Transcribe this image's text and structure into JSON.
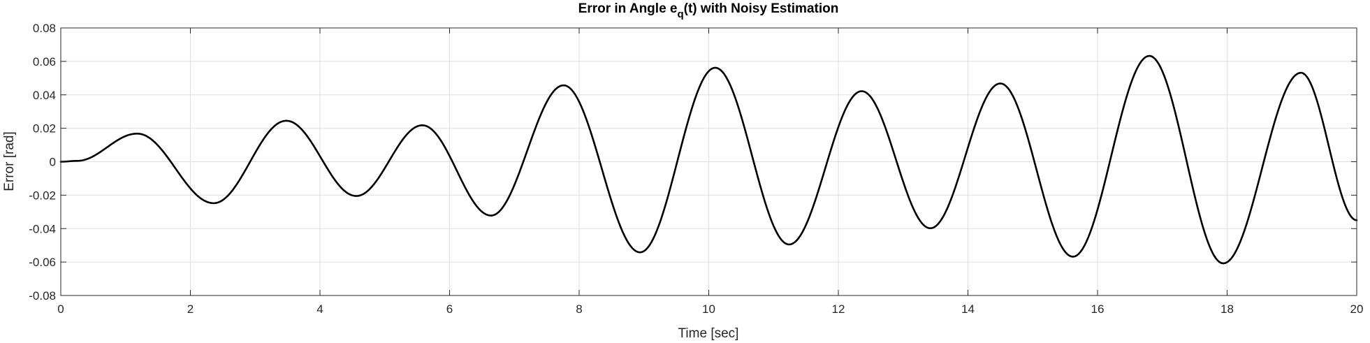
{
  "chart_data": {
    "type": "line",
    "title": {
      "prefix": "Error in Angle e",
      "subscript": "q",
      "suffix": "(t) with Noisy Estimation"
    },
    "xlabel": "Time [sec]",
    "ylabel": "Error [rad]",
    "xlim": [
      0,
      20
    ],
    "ylim": [
      -0.08,
      0.08
    ],
    "grid": true,
    "legend": "none",
    "xticks": [
      0,
      2,
      4,
      6,
      8,
      10,
      12,
      14,
      16,
      18,
      20
    ],
    "xtick_labels": [
      "0",
      "2",
      "4",
      "6",
      "8",
      "10",
      "12",
      "14",
      "16",
      "18",
      "20"
    ],
    "yticks": [
      -0.08,
      -0.06,
      -0.04,
      -0.02,
      0,
      0.02,
      0.04,
      0.06,
      0.08
    ],
    "ytick_labels": [
      "-0.08",
      "-0.06",
      "-0.04",
      "-0.02",
      "0",
      "0.02",
      "0.04",
      "0.06",
      "0.08"
    ],
    "colors": {
      "line": "#000000",
      "grid": "#dfdfdf",
      "axis": "#262626"
    },
    "series": [
      {
        "extrema": [
          [
            0,
            0
          ],
          [
            0.25,
            0.0005
          ],
          [
            1.18,
            0.0168
          ],
          [
            2.36,
            -0.0248
          ],
          [
            3.48,
            0.0245
          ],
          [
            4.56,
            -0.0205
          ],
          [
            5.58,
            0.0218
          ],
          [
            6.64,
            -0.0322
          ],
          [
            7.76,
            0.0457
          ],
          [
            8.94,
            -0.0542
          ],
          [
            10.1,
            0.0562
          ],
          [
            11.24,
            -0.0495
          ],
          [
            12.36,
            0.0422
          ],
          [
            13.42,
            -0.0398
          ],
          [
            14.5,
            0.0468
          ],
          [
            15.62,
            -0.0568
          ],
          [
            16.8,
            0.0633
          ],
          [
            17.94,
            -0.0608
          ],
          [
            19.14,
            0.0532
          ],
          [
            20.0,
            -0.035
          ]
        ]
      }
    ]
  }
}
